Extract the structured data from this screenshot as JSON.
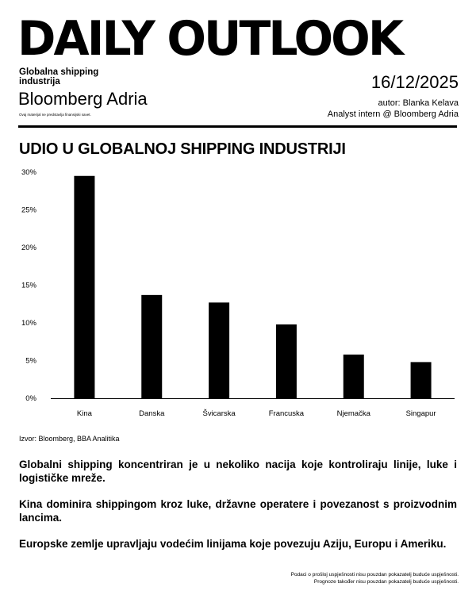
{
  "header": {
    "masthead": "DAILY OUTLOOK",
    "subtitle": "Globalna shipping industrija",
    "brand": "Bloomberg Adria",
    "disclaimer": "Ovaj materijal ne predstavlja finansijski savet.",
    "date": "16/12/2025",
    "author": "autor: Blanka Kelava",
    "role": "Analyst intern @ Bloomberg Adria"
  },
  "chart_data": {
    "type": "bar",
    "title": "UDIO U GLOBALNOJ SHIPPING INDUSTRIJI",
    "categories": [
      "Kina",
      "Danska",
      "Švicarska",
      "Francuska",
      "Njemačka",
      "Singapur"
    ],
    "values": [
      29.5,
      13.7,
      12.7,
      9.8,
      5.8,
      4.8
    ],
    "yticks": [
      "0%",
      "5%",
      "10%",
      "15%",
      "20%",
      "25%",
      "30%"
    ],
    "ylim": [
      0,
      30
    ],
    "grid": false,
    "bar_color": "#000000",
    "source": "Izvor: Bloomberg, BBA Analitika"
  },
  "body": {
    "paragraphs": [
      "Globalni shipping koncentriran je u nekoliko nacija koje kontroliraju linije, luke i logističke mreže.",
      "Kina dominira shippingom kroz luke, državne operatere i povezanost s proizvodnim lancima.",
      "Europske zemlje upravljaju vodećim linijama koje povezuju Aziju, Europu i Ameriku."
    ]
  },
  "footer": {
    "line1": "Podaci o prošlој uspješnosti nisu pouzdan pokazatelj buduće uspješnosti.",
    "line2": "Prognoze također nisu pouzdan pokazatelj buduće uspješnosti."
  }
}
